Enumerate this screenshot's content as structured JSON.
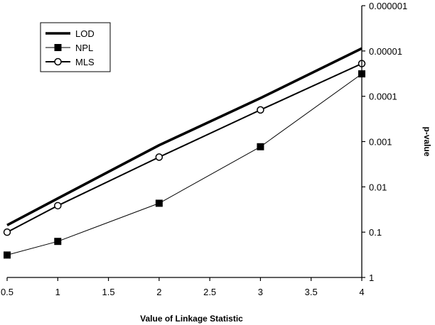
{
  "chart_data": {
    "type": "line",
    "title": "",
    "xlabel": "Value of Linkage Statistic",
    "ylabel": "p-value",
    "xlim": [
      0.5,
      4
    ],
    "xticks": [
      "0.5",
      "1",
      "1.5",
      "2",
      "2.5",
      "3",
      "3.5",
      "4"
    ],
    "ylim": [
      1,
      1e-06
    ],
    "y_scale": "log-reversed",
    "y_axis_side": "right",
    "yticks": [
      "1",
      "0.1",
      "0.01",
      "0.001",
      "0.0001",
      "0.00001",
      "0.000001"
    ],
    "grid": false,
    "legend_position": "top-left",
    "series": [
      {
        "name": "LOD",
        "marker": "none",
        "line_style": "thick",
        "x": [
          0.5,
          1,
          2,
          3,
          4
        ],
        "y": [
          0.07,
          0.018,
          0.0012,
          0.00011,
          8.8e-06
        ]
      },
      {
        "name": "NPL",
        "marker": "square",
        "line_style": "thin",
        "x": [
          0.5,
          1,
          2,
          3,
          4
        ],
        "y": [
          0.32,
          0.16,
          0.023,
          0.0013,
          3.2e-05
        ]
      },
      {
        "name": "MLS",
        "marker": "circle-open",
        "line_style": "medium",
        "x": [
          0.5,
          1,
          2,
          3,
          4
        ],
        "y": [
          0.1,
          0.026,
          0.0022,
          0.0002,
          1.9e-05
        ]
      }
    ]
  }
}
